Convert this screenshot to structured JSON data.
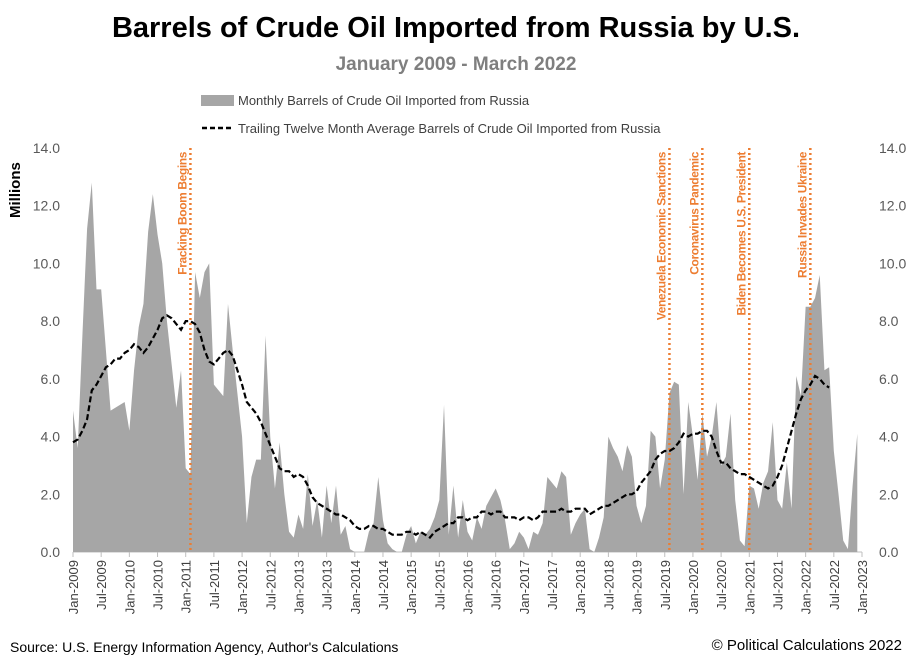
{
  "chart_data": {
    "type": "area",
    "title": "Barrels of Crude Oil Imported from Russia by U.S.",
    "subtitle": "January 2009 - March 2022",
    "ylabel": "Millions",
    "ylim": [
      0,
      14
    ],
    "yticks": [
      "0.0",
      "2.0",
      "4.0",
      "6.0",
      "8.0",
      "10.0",
      "12.0",
      "14.0"
    ],
    "xticks": [
      "Jan-2009",
      "Jul-2009",
      "Jan-2010",
      "Jul-2010",
      "Jan-2011",
      "Jul-2011",
      "Jan-2012",
      "Jul-2012",
      "Jan-2013",
      "Jul-2013",
      "Jan-2014",
      "Jul-2014",
      "Jan-2015",
      "Jul-2015",
      "Jan-2016",
      "Jul-2016",
      "Jan-2017",
      "Jul-2017",
      "Jan-2018",
      "Jul-2018",
      "Jan-2019",
      "Jul-2019",
      "Jan-2020",
      "Jul-2020",
      "Jan-2021",
      "Jul-2021",
      "Jan-2022",
      "Jul-2022",
      "Jan-2023"
    ],
    "legend": {
      "monthly": "Monthly Barrels of Crude Oil Imported from Russia",
      "ttm": "Trailing Twelve Month Average Barrels of Crude Oil Imported from Russia"
    },
    "series": [
      {
        "name": "Monthly Barrels of Crude Oil Imported from Russia",
        "style": "area",
        "color": "#a6a6a6",
        "values": [
          4.9,
          3.6,
          7.5,
          11.2,
          12.8,
          9.1,
          9.1,
          7.0,
          4.9,
          5.0,
          5.1,
          5.2,
          4.2,
          6.3,
          7.8,
          8.6,
          11.1,
          12.4,
          11.0,
          10.0,
          8.0,
          6.5,
          5.0,
          6.3,
          2.9,
          2.7,
          9.7,
          8.8,
          9.7,
          10.0,
          5.8,
          5.6,
          5.4,
          8.6,
          7.0,
          5.5,
          4.0,
          1.0,
          2.6,
          3.2,
          3.2,
          7.5,
          4.0,
          2.2,
          3.8,
          2.0,
          0.7,
          0.5,
          1.3,
          0.8,
          2.7,
          0.9,
          1.8,
          0.5,
          2.3,
          1.0,
          2.3,
          0.6,
          0.9,
          0.1,
          0.0,
          0.0,
          0.0,
          0.7,
          1.0,
          2.6,
          1.1,
          0.3,
          0.1,
          0.0,
          0.0,
          0.6,
          0.9,
          0.3,
          0.7,
          0.6,
          0.8,
          1.2,
          1.8,
          5.1,
          0.6,
          2.3,
          0.5,
          1.8,
          0.7,
          0.4,
          1.2,
          0.8,
          1.6,
          1.9,
          2.2,
          1.8,
          1.1,
          0.1,
          0.3,
          0.7,
          0.5,
          0.1,
          0.7,
          0.6,
          1.0,
          2.6,
          2.4,
          2.2,
          2.8,
          2.6,
          0.6,
          1.0,
          1.3,
          1.5,
          0.1,
          0.0,
          0.5,
          1.2,
          4.0,
          3.6,
          3.3,
          2.8,
          3.7,
          3.3,
          1.6,
          1.0,
          1.6,
          4.2,
          4.0,
          2.2,
          3.2,
          5.5,
          5.9,
          5.8,
          2.0,
          5.2,
          4.0,
          2.5,
          4.8,
          3.3,
          4.0,
          5.2,
          3.0,
          3.3,
          4.8,
          1.8,
          0.4,
          0.2,
          2.3,
          2.2,
          1.5,
          2.4,
          2.8,
          4.5,
          1.8,
          1.5,
          3.1,
          1.5,
          6.1,
          5.4,
          8.5,
          8.5,
          8.8,
          9.6,
          6.3,
          6.4,
          3.5,
          2.0,
          0.4,
          0.1,
          2.3,
          4.1
        ]
      },
      {
        "name": "Trailing Twelve Month Average Barrels of Crude Oil Imported from Russia",
        "style": "dashed-line",
        "color": "#000000",
        "values": [
          3.8,
          3.9,
          4.2,
          4.6,
          5.6,
          5.8,
          6.1,
          6.4,
          6.5,
          6.7,
          6.7,
          6.9,
          7.0,
          7.2,
          7.1,
          6.9,
          7.1,
          7.4,
          7.7,
          8.1,
          8.2,
          8.1,
          7.9,
          7.7,
          8.0,
          8.0,
          7.9,
          7.6,
          7.0,
          6.6,
          6.5,
          6.7,
          6.9,
          7.0,
          6.8,
          6.3,
          5.8,
          5.2,
          5.0,
          4.8,
          4.5,
          4.1,
          3.7,
          3.3,
          2.9,
          2.8,
          2.8,
          2.6,
          2.7,
          2.6,
          2.3,
          1.9,
          1.7,
          1.6,
          1.5,
          1.4,
          1.3,
          1.3,
          1.2,
          1.1,
          0.9,
          0.8,
          0.8,
          0.9,
          0.9,
          0.8,
          0.8,
          0.7,
          0.6,
          0.6,
          0.6,
          0.7,
          0.7,
          0.6,
          0.7,
          0.6,
          0.5,
          0.7,
          0.8,
          0.9,
          1.0,
          1.0,
          1.2,
          1.2,
          1.1,
          1.2,
          1.2,
          1.4,
          1.4,
          1.3,
          1.4,
          1.4,
          1.2,
          1.2,
          1.2,
          1.1,
          1.2,
          1.2,
          1.1,
          1.2,
          1.4,
          1.4,
          1.4,
          1.4,
          1.5,
          1.4,
          1.4,
          1.5,
          1.5,
          1.5,
          1.3,
          1.4,
          1.5,
          1.6,
          1.6,
          1.7,
          1.8,
          1.9,
          2.0,
          2.0,
          2.1,
          2.4,
          2.6,
          2.8,
          3.2,
          3.4,
          3.5,
          3.5,
          3.6,
          3.8,
          4.1,
          4.0,
          4.1,
          4.1,
          4.2,
          4.2,
          4.0,
          3.5,
          3.1,
          3.1,
          2.9,
          2.8,
          2.7,
          2.7,
          2.6,
          2.5,
          2.4,
          2.3,
          2.2,
          2.3,
          2.6,
          3.0,
          3.6,
          4.2,
          4.8,
          5.3,
          5.6,
          5.8,
          6.1,
          6.0,
          5.8,
          5.7
        ]
      }
    ],
    "events": [
      {
        "label": "Fracking Boom Begins",
        "month_index": 25,
        "color": "#ed7d31"
      },
      {
        "label": "Venezuela Economic Sanctions",
        "month_index": 127,
        "color": "#ed7d31"
      },
      {
        "label": "Coronavirus Pandemic",
        "month_index": 134,
        "color": "#ed7d31"
      },
      {
        "label": "Biden Becomes U.S. President",
        "month_index": 144,
        "color": "#ed7d31"
      },
      {
        "label": "Russia Invades Ukraine",
        "month_index": 157,
        "color": "#ed7d31"
      }
    ]
  },
  "footer": {
    "source": "Source: U.S. Energy Information Agency, Author's Calculations",
    "copyright": "© Political Calculations 2022"
  }
}
